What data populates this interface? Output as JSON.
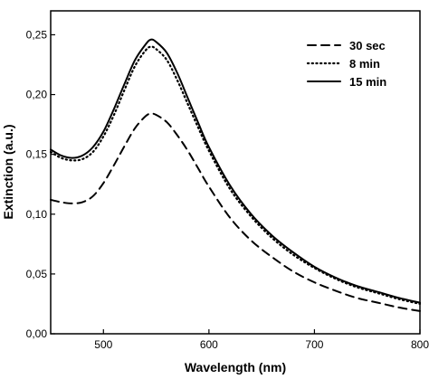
{
  "chart_data": {
    "type": "line",
    "title": "",
    "xlabel": "Wavelength (nm)",
    "ylabel": "Extinction (a.u.)",
    "xlim": [
      450,
      800
    ],
    "ylim": [
      0,
      0.27
    ],
    "x_ticks": [
      500,
      600,
      700,
      800
    ],
    "x_tick_labels": [
      "500",
      "600",
      "700",
      "800"
    ],
    "y_ticks": [
      0,
      0.05,
      0.1,
      0.15,
      0.2,
      0.25
    ],
    "y_tick_labels": [
      "0,00",
      "0,05",
      "0,10",
      "0,15",
      "0,20",
      "0,25"
    ],
    "grid": false,
    "legend_position": "top-right",
    "series": [
      {
        "name": "30 sec",
        "style": "dashed",
        "color": "#000000",
        "x": [
          450,
          460,
          470,
          480,
          490,
          500,
          510,
          520,
          530,
          540,
          545,
          550,
          560,
          570,
          580,
          590,
          600,
          620,
          640,
          660,
          680,
          700,
          720,
          740,
          760,
          780,
          800
        ],
        "y": [
          0.112,
          0.11,
          0.109,
          0.11,
          0.115,
          0.126,
          0.141,
          0.157,
          0.172,
          0.182,
          0.184,
          0.183,
          0.177,
          0.166,
          0.153,
          0.138,
          0.123,
          0.097,
          0.078,
          0.064,
          0.052,
          0.043,
          0.036,
          0.03,
          0.026,
          0.022,
          0.019
        ]
      },
      {
        "name": "8 min",
        "style": "dotted",
        "color": "#000000",
        "x": [
          450,
          460,
          470,
          480,
          490,
          500,
          510,
          520,
          530,
          540,
          545,
          550,
          560,
          570,
          580,
          590,
          600,
          620,
          640,
          660,
          680,
          700,
          720,
          740,
          760,
          780,
          800
        ],
        "y": [
          0.152,
          0.147,
          0.145,
          0.146,
          0.152,
          0.165,
          0.183,
          0.204,
          0.224,
          0.237,
          0.24,
          0.238,
          0.229,
          0.212,
          0.192,
          0.172,
          0.153,
          0.121,
          0.098,
          0.08,
          0.066,
          0.055,
          0.046,
          0.039,
          0.034,
          0.029,
          0.025
        ]
      },
      {
        "name": "15 min",
        "style": "solid",
        "color": "#000000",
        "x": [
          450,
          460,
          470,
          480,
          490,
          500,
          510,
          520,
          530,
          540,
          545,
          550,
          560,
          570,
          580,
          590,
          600,
          620,
          640,
          660,
          680,
          700,
          720,
          740,
          760,
          780,
          800
        ],
        "y": [
          0.154,
          0.149,
          0.147,
          0.149,
          0.156,
          0.169,
          0.188,
          0.209,
          0.229,
          0.242,
          0.246,
          0.244,
          0.235,
          0.218,
          0.197,
          0.176,
          0.156,
          0.124,
          0.1,
          0.082,
          0.068,
          0.056,
          0.047,
          0.04,
          0.035,
          0.03,
          0.026
        ]
      }
    ]
  }
}
